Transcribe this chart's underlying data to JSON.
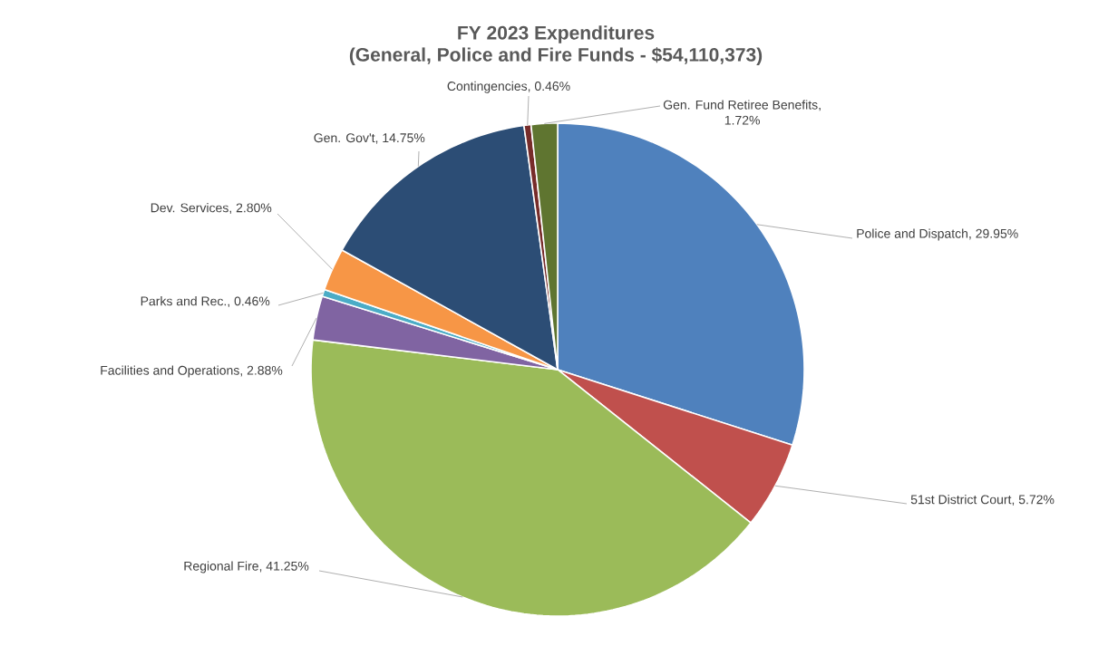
{
  "chart_data": {
    "type": "pie",
    "title": "FY  2023 Expenditures",
    "subtitle": "(General, Police and Fire Funds - $54,110,373)",
    "categories": [
      "Police and Dispatch",
      "51st District Court",
      "Regional Fire",
      "Facilities and Operations",
      "Parks and Rec.",
      "Dev. Services",
      "Gen. Gov't",
      "Contingencies",
      "Gen. Fund Retiree Benefits"
    ],
    "values": [
      29.95,
      5.72,
      41.25,
      2.88,
      0.46,
      2.8,
      14.75,
      0.46,
      1.72
    ],
    "value_labels": [
      ", 29.95%",
      ", 5.72%",
      ", 41.25%",
      ", 2.88%",
      ", 0.46%",
      ", 2.80%",
      ", 14.75%",
      ", 0.46%",
      ", 1.72%"
    ],
    "colors": [
      "#4f81bd",
      "#c0504d",
      "#9bbb59",
      "#8064a2",
      "#4bacc6",
      "#f79646",
      "#2c4d75",
      "#772c2a",
      "#5f7530"
    ]
  }
}
